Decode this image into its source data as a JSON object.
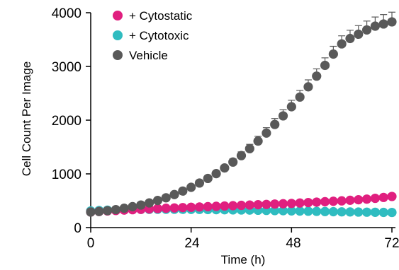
{
  "chart_data": {
    "type": "scatter",
    "title": "",
    "xlabel": "Time (h)",
    "ylabel": "Cell Count Per Image",
    "xlim": [
      0,
      72
    ],
    "ylim": [
      0,
      4000
    ],
    "x_ticks": [
      "0",
      "24",
      "48",
      "72"
    ],
    "y_ticks": [
      "0",
      "1000",
      "2000",
      "3000",
      "4000"
    ],
    "x_tick_values": [
      0,
      24,
      48,
      72
    ],
    "y_tick_values": [
      0,
      1000,
      2000,
      3000,
      4000
    ],
    "grid": false,
    "legend_position": "top-left",
    "x": [
      0,
      2,
      4,
      6,
      8,
      10,
      12,
      14,
      16,
      18,
      20,
      22,
      24,
      26,
      28,
      30,
      32,
      34,
      36,
      38,
      40,
      42,
      44,
      46,
      48,
      50,
      52,
      54,
      56,
      58,
      60,
      62,
      64,
      66,
      68,
      70,
      72
    ],
    "series": [
      {
        "name": "+ Cytostatic",
        "color": "#e01f7f",
        "y": [
          290,
          300,
          310,
          318,
          326,
          333,
          340,
          347,
          354,
          360,
          366,
          372,
          378,
          384,
          390,
          396,
          402,
          408,
          414,
          420,
          426,
          432,
          438,
          444,
          450,
          458,
          466,
          474,
          482,
          490,
          498,
          508,
          518,
          530,
          545,
          562,
          580
        ]
      },
      {
        "name": "+ Cytotoxic",
        "color": "#2fbcc0",
        "y": [
          310,
          318,
          325,
          330,
          334,
          337,
          339,
          340,
          341,
          341,
          341,
          340,
          339,
          338,
          336,
          334,
          332,
          330,
          328,
          326,
          323,
          320,
          317,
          314,
          311,
          308,
          305,
          302,
          299,
          296,
          293,
          291,
          289,
          287,
          285,
          283,
          282
        ]
      },
      {
        "name": "Vehicle",
        "color": "#595959",
        "y": [
          290,
          300,
          315,
          335,
          360,
          390,
          420,
          460,
          505,
          555,
          615,
          680,
          750,
          830,
          915,
          1005,
          1110,
          1220,
          1340,
          1470,
          1610,
          1760,
          1920,
          2080,
          2250,
          2430,
          2620,
          2820,
          3020,
          3230,
          3420,
          3520,
          3600,
          3680,
          3750,
          3790,
          3830
        ],
        "error": [
          10,
          10,
          10,
          10,
          10,
          10,
          10,
          10,
          10,
          10,
          10,
          10,
          20,
          25,
          30,
          40,
          50,
          60,
          70,
          80,
          90,
          100,
          110,
          115,
          120,
          125,
          130,
          135,
          140,
          145,
          150,
          155,
          160,
          165,
          170,
          175,
          180
        ]
      }
    ]
  }
}
